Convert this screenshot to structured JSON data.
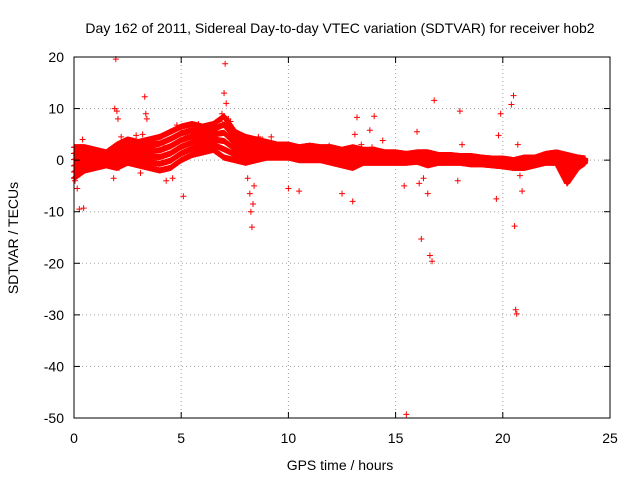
{
  "chart_data": {
    "type": "scatter",
    "title": "Day 162 of 2011, Sidereal Day-to-day VTEC variation (SDTVAR) for receiver hob2",
    "xlabel": "GPS time / hours",
    "ylabel": "SDTVAR / TECUs",
    "xlim": [
      0,
      25
    ],
    "ylim": [
      -50,
      20
    ],
    "x_ticks": [
      0,
      5,
      10,
      15,
      20,
      25
    ],
    "y_ticks": [
      -50,
      -40,
      -30,
      -20,
      -10,
      0,
      10,
      20
    ],
    "x_tick_labels": [
      "0",
      "5",
      "10",
      "15",
      "20",
      "25"
    ],
    "y_tick_labels": [
      "-50",
      "-40",
      "-30",
      "-20",
      "-10",
      "0",
      "10",
      "20"
    ],
    "grid": true,
    "marker": "+",
    "color": "#ff0000",
    "series": [
      {
        "name": "SDTVAR",
        "points": [
          [
            0.0,
            -3.5
          ],
          [
            0.05,
            -4.0
          ],
          [
            0.1,
            1.0
          ],
          [
            0.15,
            -5.5
          ],
          [
            0.2,
            -2.0
          ],
          [
            0.25,
            -9.5
          ],
          [
            0.3,
            2.5
          ],
          [
            0.4,
            4.0
          ],
          [
            0.45,
            -9.3
          ],
          [
            0.5,
            2.0
          ],
          [
            0.6,
            -1.0
          ],
          [
            0.7,
            1.5
          ],
          [
            0.9,
            0.5
          ],
          [
            1.1,
            1.8
          ],
          [
            1.3,
            0.2
          ],
          [
            1.5,
            1.2
          ],
          [
            1.7,
            -1.0
          ],
          [
            1.85,
            -3.5
          ],
          [
            1.9,
            10.0
          ],
          [
            1.95,
            19.6
          ],
          [
            2.0,
            9.5
          ],
          [
            2.05,
            8.0
          ],
          [
            2.1,
            -1.5
          ],
          [
            2.2,
            4.5
          ],
          [
            2.4,
            3.0
          ],
          [
            2.7,
            1.5
          ],
          [
            2.9,
            4.8
          ],
          [
            3.0,
            3.5
          ],
          [
            3.1,
            -2.5
          ],
          [
            3.2,
            5.0
          ],
          [
            3.3,
            12.3
          ],
          [
            3.35,
            9.0
          ],
          [
            3.4,
            8.0
          ],
          [
            3.5,
            2.0
          ],
          [
            3.6,
            -1.5
          ],
          [
            3.8,
            3.5
          ],
          [
            4.0,
            4.5
          ],
          [
            4.2,
            2.5
          ],
          [
            4.3,
            -4.0
          ],
          [
            4.5,
            5.5
          ],
          [
            4.6,
            -3.5
          ],
          [
            4.8,
            6.8
          ],
          [
            5.0,
            6.2
          ],
          [
            5.1,
            -7.0
          ],
          [
            5.2,
            5.0
          ],
          [
            5.4,
            6.8
          ],
          [
            5.6,
            5.5
          ],
          [
            5.8,
            7.0
          ],
          [
            6.0,
            6.0
          ],
          [
            6.2,
            5.5
          ],
          [
            6.4,
            6.5
          ],
          [
            6.6,
            6.0
          ],
          [
            6.8,
            7.5
          ],
          [
            6.9,
            9.0
          ],
          [
            7.0,
            13.0
          ],
          [
            7.05,
            18.7
          ],
          [
            7.1,
            11.0
          ],
          [
            7.2,
            8.0
          ],
          [
            7.3,
            7.5
          ],
          [
            7.4,
            3.0
          ],
          [
            7.6,
            5.0
          ],
          [
            7.8,
            3.5
          ],
          [
            8.0,
            -0.5
          ],
          [
            8.1,
            -3.5
          ],
          [
            8.2,
            -6.5
          ],
          [
            8.25,
            -10.0
          ],
          [
            8.3,
            -13.0
          ],
          [
            8.35,
            -8.5
          ],
          [
            8.4,
            -5.0
          ],
          [
            8.5,
            2.0
          ],
          [
            8.6,
            4.5
          ],
          [
            8.8,
            4.0
          ],
          [
            9.0,
            3.0
          ],
          [
            9.2,
            4.5
          ],
          [
            9.4,
            2.5
          ],
          [
            9.6,
            3.0
          ],
          [
            9.8,
            1.5
          ],
          [
            10.0,
            -5.5
          ],
          [
            10.3,
            1.0
          ],
          [
            10.5,
            -6.0
          ],
          [
            10.8,
            2.5
          ],
          [
            11.0,
            1.0
          ],
          [
            11.3,
            2.5
          ],
          [
            11.6,
            1.8
          ],
          [
            11.9,
            2.8
          ],
          [
            12.2,
            1.2
          ],
          [
            12.5,
            -6.5
          ],
          [
            12.7,
            2.0
          ],
          [
            13.0,
            -8.0
          ],
          [
            13.1,
            5.0
          ],
          [
            13.2,
            8.3
          ],
          [
            13.4,
            3.0
          ],
          [
            13.6,
            2.0
          ],
          [
            13.8,
            5.8
          ],
          [
            13.9,
            2.5
          ],
          [
            14.0,
            8.5
          ],
          [
            14.2,
            1.5
          ],
          [
            14.4,
            3.8
          ],
          [
            14.6,
            1.0
          ],
          [
            14.9,
            0.5
          ],
          [
            15.2,
            1.2
          ],
          [
            15.4,
            -5.0
          ],
          [
            15.5,
            -49.3
          ],
          [
            15.7,
            0.8
          ],
          [
            15.9,
            1.0
          ],
          [
            16.0,
            5.5
          ],
          [
            16.1,
            -4.5
          ],
          [
            16.2,
            -15.3
          ],
          [
            16.3,
            -3.5
          ],
          [
            16.4,
            1.5
          ],
          [
            16.5,
            -6.5
          ],
          [
            16.6,
            -18.5
          ],
          [
            16.7,
            -19.6
          ],
          [
            16.8,
            11.6
          ],
          [
            17.0,
            0.5
          ],
          [
            17.3,
            1.0
          ],
          [
            17.6,
            0.3
          ],
          [
            17.9,
            -4.0
          ],
          [
            18.0,
            9.5
          ],
          [
            18.1,
            3.0
          ],
          [
            18.3,
            0.0
          ],
          [
            18.6,
            0.5
          ],
          [
            18.9,
            -0.2
          ],
          [
            19.2,
            0.3
          ],
          [
            19.5,
            -0.5
          ],
          [
            19.7,
            -7.5
          ],
          [
            19.8,
            4.8
          ],
          [
            19.9,
            9.0
          ],
          [
            20.0,
            -0.5
          ],
          [
            20.2,
            -1.0
          ],
          [
            20.4,
            10.8
          ],
          [
            20.5,
            12.5
          ],
          [
            20.55,
            -12.8
          ],
          [
            20.6,
            -29.0
          ],
          [
            20.65,
            -29.8
          ],
          [
            20.7,
            3.0
          ],
          [
            20.8,
            -3.0
          ],
          [
            20.9,
            -6.0
          ],
          [
            21.0,
            -0.5
          ],
          [
            21.3,
            -1.0
          ],
          [
            21.6,
            0.0
          ],
          [
            21.9,
            0.5
          ],
          [
            22.2,
            1.0
          ],
          [
            22.5,
            0.2
          ],
          [
            22.8,
            -1.0
          ],
          [
            23.0,
            -4.5
          ],
          [
            23.1,
            -3.5
          ],
          [
            23.3,
            -2.5
          ],
          [
            23.5,
            -1.0
          ],
          [
            23.7,
            -0.5
          ],
          [
            23.85,
            0.0
          ]
        ],
        "band": [
          [
            0.0,
            -3.5,
            2.5
          ],
          [
            0.5,
            -2.0,
            2.5
          ],
          [
            1.0,
            -1.5,
            2.0
          ],
          [
            1.5,
            -1.0,
            1.5
          ],
          [
            2.0,
            -1.5,
            3.0
          ],
          [
            2.5,
            -0.5,
            4.0
          ],
          [
            3.0,
            -1.0,
            3.5
          ],
          [
            3.5,
            -1.5,
            4.0
          ],
          [
            4.0,
            -2.0,
            4.5
          ],
          [
            4.5,
            -1.5,
            5.5
          ],
          [
            5.0,
            0.0,
            6.5
          ],
          [
            5.5,
            1.0,
            7.0
          ],
          [
            6.0,
            1.5,
            6.5
          ],
          [
            6.5,
            2.0,
            7.0
          ],
          [
            7.0,
            0.5,
            8.5
          ],
          [
            7.5,
            0.0,
            5.5
          ],
          [
            8.0,
            -0.5,
            4.5
          ],
          [
            8.5,
            0.0,
            4.0
          ],
          [
            9.0,
            0.5,
            3.5
          ],
          [
            9.5,
            0.5,
            3.0
          ],
          [
            10.0,
            0.5,
            3.0
          ],
          [
            10.5,
            0.0,
            2.5
          ],
          [
            11.0,
            0.0,
            2.8
          ],
          [
            11.5,
            0.0,
            2.5
          ],
          [
            12.0,
            -0.5,
            2.5
          ],
          [
            12.5,
            -1.0,
            2.0
          ],
          [
            13.0,
            -1.5,
            2.5
          ],
          [
            13.5,
            -0.5,
            2.0
          ],
          [
            14.0,
            -0.5,
            2.0
          ],
          [
            14.5,
            -0.5,
            1.5
          ],
          [
            15.0,
            -0.5,
            1.5
          ],
          [
            15.5,
            -0.5,
            1.2
          ],
          [
            16.0,
            -0.3,
            1.5
          ],
          [
            16.5,
            -1.0,
            1.5
          ],
          [
            17.0,
            -0.5,
            1.0
          ],
          [
            17.5,
            -0.5,
            1.0
          ],
          [
            18.0,
            -0.5,
            0.8
          ],
          [
            18.5,
            -0.8,
            0.8
          ],
          [
            19.0,
            -0.8,
            0.5
          ],
          [
            19.5,
            -1.0,
            0.3
          ],
          [
            20.0,
            -1.2,
            0.3
          ],
          [
            20.5,
            -1.5,
            0.0
          ],
          [
            21.0,
            -1.5,
            0.5
          ],
          [
            21.5,
            -1.0,
            0.5
          ],
          [
            22.0,
            -0.5,
            1.2
          ],
          [
            22.5,
            -0.5,
            1.5
          ],
          [
            23.0,
            -4.5,
            1.0
          ],
          [
            23.5,
            -1.5,
            0.5
          ],
          [
            23.85,
            -0.5,
            0.3
          ]
        ]
      }
    ]
  }
}
